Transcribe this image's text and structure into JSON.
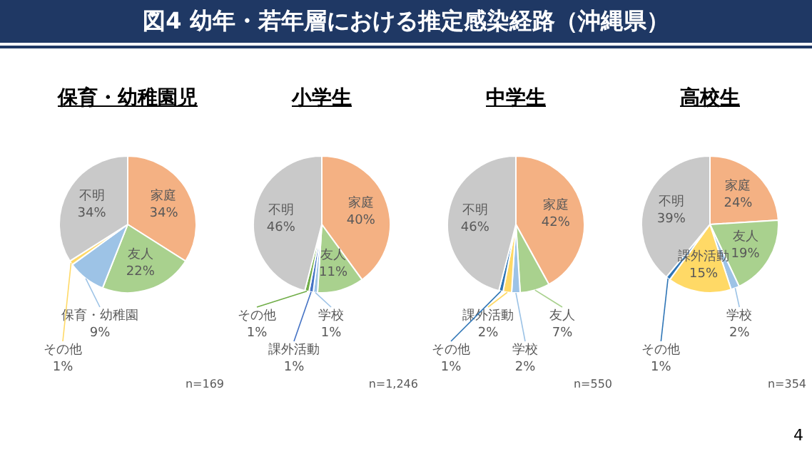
{
  "chart_data": [
    {
      "type": "other",
      "title": "図4 幼年・若年層における推定感染経路（沖縄県）",
      "annotations": [
        "4"
      ]
    },
    {
      "type": "pie",
      "title": "保育・幼稚園児",
      "categories": [
        "家庭",
        "友人",
        "保育・幼稚園",
        "その他",
        "不明"
      ],
      "values": [
        34,
        22,
        9,
        1,
        34
      ],
      "value_labels": [
        "34%",
        "22%",
        "9%",
        "1%",
        "34%"
      ],
      "colors": [
        "#f4b183",
        "#a9d18e",
        "#9dc3e6",
        "#ffd966",
        "#c9c9c9"
      ],
      "data_labels": true,
      "annotations": [
        "n=169"
      ]
    },
    {
      "type": "pie",
      "title": "小学生",
      "categories": [
        "家庭",
        "友人",
        "学校",
        "課外活動",
        "その他",
        "不明"
      ],
      "values": [
        40,
        11,
        1,
        1,
        1,
        46
      ],
      "value_labels": [
        "40%",
        "11%",
        "1%",
        "1%",
        "1%",
        "46%"
      ],
      "colors": [
        "#f4b183",
        "#a9d18e",
        "#9dc3e6",
        "#4472c4",
        "#70ad47",
        "#c9c9c9"
      ],
      "data_labels": true,
      "annotations": [
        "n=1,246"
      ]
    },
    {
      "type": "pie",
      "title": "中学生",
      "categories": [
        "家庭",
        "友人",
        "学校",
        "課外活動",
        "その他",
        "不明"
      ],
      "values": [
        42,
        7,
        2,
        2,
        1,
        46
      ],
      "value_labels": [
        "42%",
        "7%",
        "2%",
        "2%",
        "1%",
        "46%"
      ],
      "colors": [
        "#f4b183",
        "#a9d18e",
        "#9dc3e6",
        "#ffd966",
        "#2e75b6",
        "#c9c9c9"
      ],
      "data_labels": true,
      "annotations": [
        "n=550"
      ]
    },
    {
      "type": "pie",
      "title": "高校生",
      "categories": [
        "家庭",
        "友人",
        "学校",
        "課外活動",
        "その他",
        "不明"
      ],
      "values": [
        24,
        19,
        2,
        15,
        1,
        39
      ],
      "value_labels": [
        "24%",
        "19%",
        "2%",
        "15%",
        "1%",
        "39%"
      ],
      "colors": [
        "#f4b183",
        "#a9d18e",
        "#9dc3e6",
        "#ffd966",
        "#2e75b6",
        "#c9c9c9"
      ],
      "data_labels": true,
      "annotations": [
        "n=354"
      ]
    }
  ]
}
